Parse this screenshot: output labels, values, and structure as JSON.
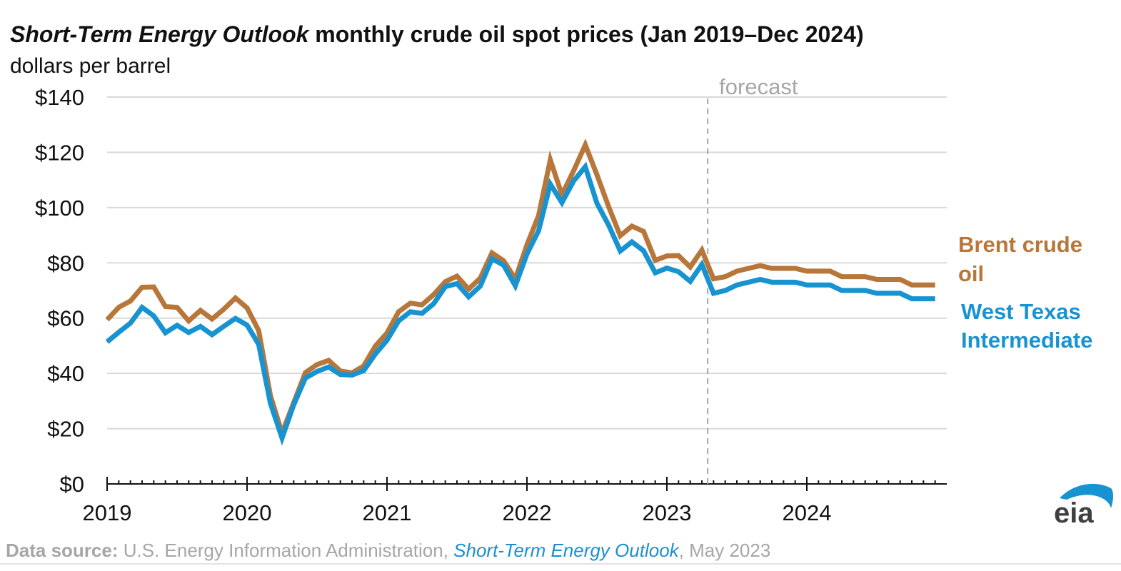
{
  "title": {
    "italic_part": "Short-Term Energy Outlook",
    "rest": " monthly crude oil spot prices (Jan 2019–Dec 2024)"
  },
  "subtitle": "dollars per barrel",
  "source": {
    "label": "Data source:",
    "text1": " U.S. Energy Information Administration, ",
    "publication": "Short-Term Energy Outlook",
    "text2": ", May 2023"
  },
  "logo": {
    "text": "eia",
    "icon": "eia-logo"
  },
  "colors": {
    "brent": "#b8773a",
    "wti": "#1793d1",
    "grid": "#d9d9d9",
    "forecast": "#a6a6a6"
  },
  "chart_data": {
    "type": "line",
    "title": "Short-Term Energy Outlook monthly crude oil spot prices (Jan 2019–Dec 2024)",
    "ylabel": "dollars per barrel",
    "xlabel": "",
    "ylim": [
      0,
      140
    ],
    "yticks": [
      0,
      20,
      40,
      60,
      80,
      100,
      120,
      140
    ],
    "ytick_labels": [
      "$0",
      "$20",
      "$40",
      "$60",
      "$80",
      "$100",
      "$120",
      "$140"
    ],
    "x_start": "2019-01",
    "x_end": "2024-12",
    "xtick_labels": [
      "2019",
      "2020",
      "2021",
      "2022",
      "2023",
      "2024"
    ],
    "grid": true,
    "forecast_start": "2023-05",
    "forecast_label": "forecast",
    "legend": "direct labels right of lines",
    "series": [
      {
        "name": "Brent crude oil",
        "label_lines": [
          "Brent crude",
          "oil"
        ],
        "values": [
          59.4,
          63.9,
          66.2,
          71.2,
          71.3,
          64.2,
          63.9,
          59.0,
          62.8,
          59.7,
          63.2,
          67.3,
          63.7,
          55.5,
          32.0,
          18.4,
          29.4,
          40.3,
          43.2,
          44.7,
          40.9,
          40.2,
          42.7,
          49.9,
          54.6,
          62.3,
          65.4,
          64.8,
          68.5,
          73.2,
          75.2,
          70.5,
          74.5,
          83.6,
          80.8,
          74.2,
          86.5,
          97.1,
          117.3,
          104.6,
          113.3,
          122.7,
          111.9,
          100.4,
          89.8,
          93.3,
          91.4,
          80.9,
          82.5,
          82.6,
          78.5,
          84.6,
          74.2,
          75.0,
          77.0,
          78.0,
          79.0,
          78.0,
          78.0,
          78.0,
          77.0,
          77.0,
          77.0,
          75.0,
          75.0,
          75.0,
          74.0,
          74.0,
          74.0,
          72.0,
          72.0,
          72.0
        ]
      },
      {
        "name": "West Texas Intermediate",
        "label_lines": [
          "West Texas",
          "Intermediate"
        ],
        "values": [
          51.4,
          54.9,
          58.2,
          63.9,
          60.8,
          54.7,
          57.4,
          54.8,
          57.0,
          54.0,
          57.0,
          59.9,
          57.5,
          50.5,
          29.2,
          16.6,
          28.6,
          38.3,
          40.7,
          42.3,
          39.6,
          39.4,
          41.0,
          47.0,
          52.0,
          59.0,
          62.3,
          61.7,
          65.2,
          71.4,
          72.5,
          67.7,
          71.6,
          81.5,
          79.2,
          71.7,
          83.2,
          91.6,
          108.5,
          101.8,
          109.6,
          114.8,
          101.6,
          93.7,
          84.3,
          87.6,
          84.4,
          76.4,
          78.1,
          76.8,
          73.3,
          79.4,
          69.0,
          70.0,
          72.0,
          73.0,
          74.0,
          73.0,
          73.0,
          73.0,
          72.0,
          72.0,
          72.0,
          70.0,
          70.0,
          70.0,
          69.0,
          69.0,
          69.0,
          67.0,
          67.0,
          67.0
        ]
      }
    ]
  }
}
